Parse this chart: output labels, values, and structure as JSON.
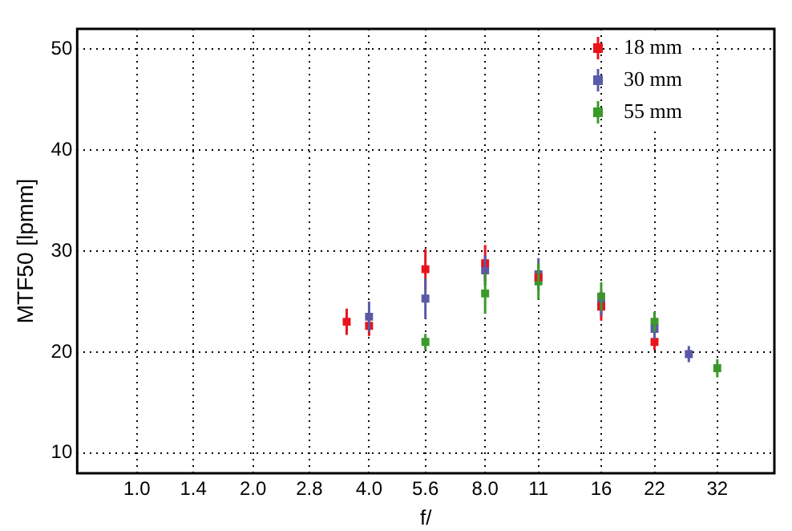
{
  "chart_data": {
    "type": "scatter",
    "xlabel": "f/",
    "ylabel": "MTF50 [lpmm]",
    "log": "x",
    "xlim": [
      0.71,
      45
    ],
    "xticks": [
      {
        "value": 1,
        "label": "1.0"
      },
      1.4,
      {
        "value": 2,
        "label": "2.0"
      },
      2.8,
      {
        "value": 4,
        "label": "4.0"
      },
      5.6,
      {
        "value": 8,
        "label": "8.0"
      },
      11,
      16,
      22,
      32
    ],
    "ylim": [
      8,
      52
    ],
    "yticks": [
      10,
      20,
      30,
      40,
      50
    ],
    "grid": true,
    "legend": "top right",
    "marker": "square",
    "series": [
      {
        "name": "18 mm",
        "color": "#e8141c",
        "x": [
          3.5,
          4,
          5.6,
          8,
          11,
          16,
          22
        ],
        "values": [
          23,
          22.6,
          28.2,
          28.8,
          27.4,
          24.5,
          21
        ],
        "errors": [
          1.3,
          1,
          2,
          1.8,
          null,
          1.4,
          0.8
        ]
      },
      {
        "name": "30 mm",
        "color": "#5a5aa8",
        "x": [
          4,
          5.6,
          8,
          11,
          16,
          22,
          27
        ],
        "values": [
          23.5,
          25.3,
          28.1,
          27.7,
          24.8,
          22.3,
          19.8
        ],
        "errors": [
          1.5,
          2,
          1.5,
          1.6,
          1.2,
          1,
          0.8
        ]
      },
      {
        "name": "55 mm",
        "color": "#3a9a2a",
        "x": [
          5.6,
          8,
          11,
          16,
          22,
          32
        ],
        "values": [
          21,
          25.8,
          27,
          25.5,
          23,
          18.4
        ],
        "errors": [
          0.8,
          2,
          1.8,
          1.4,
          1,
          0.9
        ]
      }
    ]
  }
}
